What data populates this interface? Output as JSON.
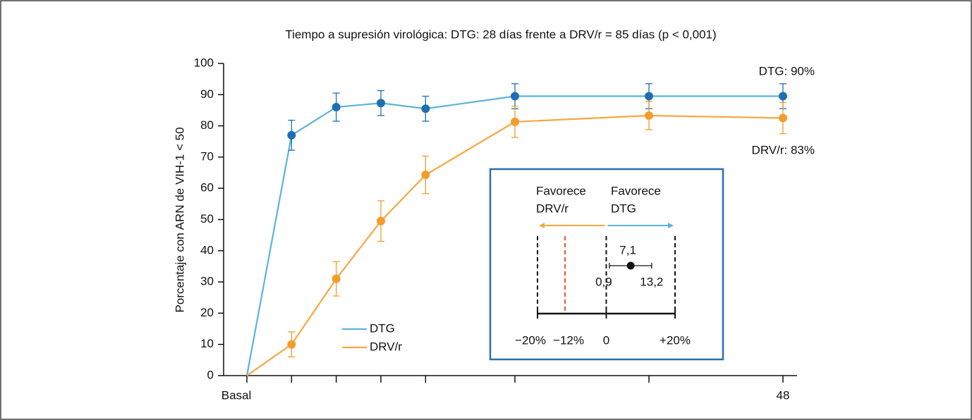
{
  "chart_data": {
    "type": "line",
    "title": "Tiempo a supresión virológica: DTG: 28 días frente a DRV/r = 85 días (p < 0,001)",
    "y_label": "Porcentaje con ARN de VIH-1 < 50",
    "x": [
      0,
      4,
      8,
      12,
      16,
      24,
      36,
      48
    ],
    "xlim": [
      0,
      48
    ],
    "xticks": [
      {
        "value": 0,
        "label": "Basal"
      },
      {
        "value": 4,
        "label": null
      },
      {
        "value": 8,
        "label": null
      },
      {
        "value": 12,
        "label": null
      },
      {
        "value": 16,
        "label": null
      },
      {
        "value": 24,
        "label": null
      },
      {
        "value": 36,
        "label": null
      },
      48
    ],
    "ylim": [
      0,
      100
    ],
    "yticks": [
      0,
      10,
      20,
      30,
      40,
      50,
      60,
      70,
      80,
      90,
      100
    ],
    "grid": false,
    "legend": "lower left",
    "series": [
      {
        "name": "DTG",
        "color": "#5bb3dc",
        "marker_color": "#1f6fb2",
        "values": [
          0,
          77,
          86,
          87.3,
          85.5,
          89.5,
          89.5,
          89.5
        ],
        "errors": [
          null,
          4.8,
          4.5,
          4,
          4,
          4,
          4,
          4
        ],
        "end_label": "DTG: 90%"
      },
      {
        "name": "DRV/r",
        "color": "#f5a742",
        "marker_color": "#f39c2c",
        "values": [
          0,
          10,
          31,
          49.5,
          64.3,
          81.3,
          83.3,
          82.5
        ],
        "errors": [
          null,
          4,
          5.5,
          6.5,
          6,
          5,
          4.5,
          5
        ],
        "end_label": "DRV/r: 83%"
      }
    ],
    "inset": {
      "left_label": [
        "Favorece",
        "DRV/r"
      ],
      "right_label": [
        "Favorece",
        "DTG"
      ],
      "xlim": [
        -20,
        20
      ],
      "xticks": [
        {
          "value": -20,
          "label": "−20%"
        },
        0,
        {
          "value": 20,
          "label": "+20%"
        }
      ],
      "margin": {
        "value": -12,
        "label": "−12%",
        "color": "#e8542c"
      },
      "estimate": 7.1,
      "estimate_label": "7,1",
      "ci": [
        0.9,
        13.2
      ],
      "ci_labels": [
        "0,9",
        "13,2"
      ],
      "border_color": "#2a6fb0"
    }
  }
}
